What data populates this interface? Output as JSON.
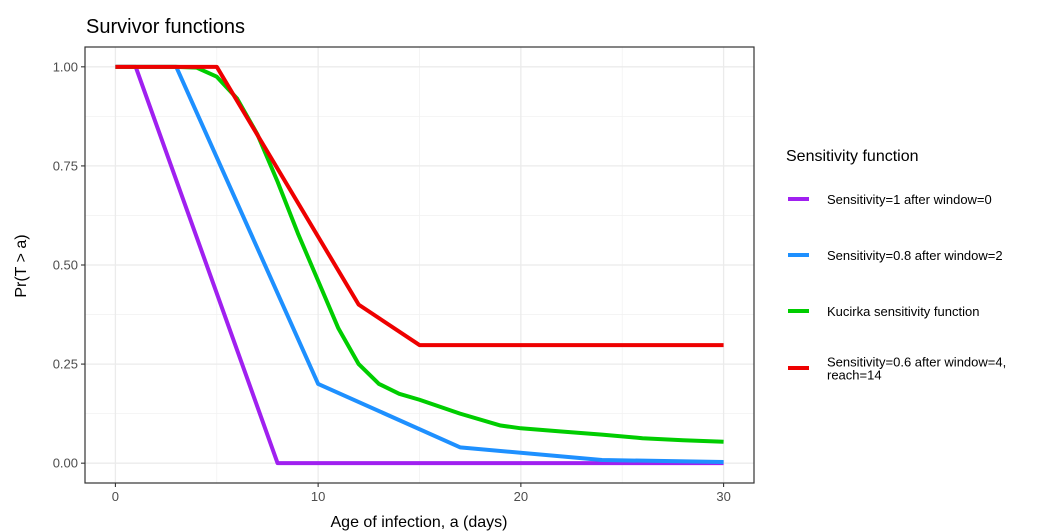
{
  "chart_data": {
    "type": "line",
    "title": "Survivor functions",
    "xlabel": "Age of infection, a (days)",
    "ylabel": "Pr(T > a)",
    "xlim": [
      -1.5,
      31.5
    ],
    "ylim": [
      -0.05,
      1.05
    ],
    "x_ticks": [
      0,
      10,
      20,
      30
    ],
    "x_tick_labels": [
      "0",
      "10",
      "20",
      "30"
    ],
    "x_minor_ticks": [
      5,
      15,
      25
    ],
    "y_ticks": [
      0,
      0.25,
      0.5,
      0.75,
      1.0
    ],
    "y_tick_labels": [
      "0.00",
      "0.25",
      "0.50",
      "0.75",
      "1.00"
    ],
    "y_minor_ticks": [
      0.125,
      0.375,
      0.625,
      0.875
    ],
    "grid": true,
    "legend": {
      "title": "Sensitivity function",
      "position": "right"
    },
    "series": [
      {
        "name": "Sensitivity=1 after window=0",
        "color": "#a020f0",
        "points": [
          [
            0,
            1.0
          ],
          [
            1,
            1.0
          ],
          [
            8,
            0.0
          ],
          [
            30,
            0.0
          ]
        ]
      },
      {
        "name": "Sensitivity=0.8 after window=2",
        "color": "#1e90ff",
        "points": [
          [
            0,
            1.0
          ],
          [
            3,
            1.0
          ],
          [
            10,
            0.2
          ],
          [
            17,
            0.04
          ],
          [
            24,
            0.008
          ],
          [
            30,
            0.003
          ]
        ]
      },
      {
        "name": "Kucirka sensitivity function",
        "color": "#00cd00",
        "points": [
          [
            0,
            1.0
          ],
          [
            3,
            1.0
          ],
          [
            4,
            0.998
          ],
          [
            5,
            0.975
          ],
          [
            6,
            0.92
          ],
          [
            7,
            0.83
          ],
          [
            8,
            0.71
          ],
          [
            9,
            0.58
          ],
          [
            10,
            0.46
          ],
          [
            11,
            0.34
          ],
          [
            12,
            0.25
          ],
          [
            13,
            0.2
          ],
          [
            14,
            0.175
          ],
          [
            15,
            0.16
          ],
          [
            17,
            0.125
          ],
          [
            19,
            0.095
          ],
          [
            20,
            0.088
          ],
          [
            22,
            0.08
          ],
          [
            24,
            0.072
          ],
          [
            26,
            0.063
          ],
          [
            28,
            0.058
          ],
          [
            30,
            0.054
          ]
        ]
      },
      {
        "name": "Sensitivity=0.6 after window=4, reach=14",
        "legend_lines": [
          "Sensitivity=0.6 after window=4,",
          "reach=14"
        ],
        "color": "#ee0000",
        "points": [
          [
            0,
            1.0
          ],
          [
            5,
            1.0
          ],
          [
            12,
            0.4
          ],
          [
            15,
            0.298
          ],
          [
            30,
            0.298
          ]
        ]
      }
    ]
  }
}
